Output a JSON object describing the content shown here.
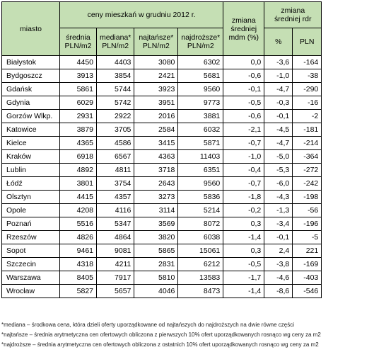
{
  "headers": {
    "city": "miasto",
    "prices_group": "ceny mieszkań w grudniu 2012 r.",
    "avg": "średnia PLN/m2",
    "median": "mediana* PLN/m2",
    "lowest": "najtańsze* PLN/m2",
    "highest": "najdroższe* PLN/m2",
    "change_avg": "zmiana średniej mdm (%)",
    "change_yoy": "zmiana średniej rdr",
    "pct": "%",
    "pln": "PLN"
  },
  "rows": [
    {
      "city": "Białystok",
      "avg": "4450",
      "median": "4403",
      "low": "3080",
      "high": "6302",
      "mdm": "0,0",
      "pct": "-3,6",
      "pln": "-164"
    },
    {
      "city": "Bydgoszcz",
      "avg": "3913",
      "median": "3854",
      "low": "2421",
      "high": "5681",
      "mdm": "-0,6",
      "pct": "-1,0",
      "pln": "-38"
    },
    {
      "city": "Gdańsk",
      "avg": "5861",
      "median": "5744",
      "low": "3923",
      "high": "9560",
      "mdm": "-0,1",
      "pct": "-4,7",
      "pln": "-290"
    },
    {
      "city": "Gdynia",
      "avg": "6029",
      "median": "5742",
      "low": "3951",
      "high": "9773",
      "mdm": "-0,5",
      "pct": "-0,3",
      "pln": "-16"
    },
    {
      "city": "Gorzów Wlkp.",
      "avg": "2931",
      "median": "2922",
      "low": "2016",
      "high": "3881",
      "mdm": "-0,6",
      "pct": "-0,1",
      "pln": "-2"
    },
    {
      "city": "Katowice",
      "avg": "3879",
      "median": "3705",
      "low": "2584",
      "high": "6032",
      "mdm": "-2,1",
      "pct": "-4,5",
      "pln": "-181"
    },
    {
      "city": "Kielce",
      "avg": "4365",
      "median": "4586",
      "low": "3415",
      "high": "5871",
      "mdm": "-0,7",
      "pct": "-4,7",
      "pln": "-214"
    },
    {
      "city": "Kraków",
      "avg": "6918",
      "median": "6567",
      "low": "4363",
      "high": "11403",
      "mdm": "-1,0",
      "pct": "-5,0",
      "pln": "-364"
    },
    {
      "city": "Lublin",
      "avg": "4892",
      "median": "4811",
      "low": "3718",
      "high": "6351",
      "mdm": "-0,4",
      "pct": "-5,3",
      "pln": "-272"
    },
    {
      "city": "Łódź",
      "avg": "3801",
      "median": "3754",
      "low": "2643",
      "high": "9560",
      "mdm": "-0,7",
      "pct": "-6,0",
      "pln": "-242"
    },
    {
      "city": "Olsztyn",
      "avg": "4415",
      "median": "4357",
      "low": "3273",
      "high": "5836",
      "mdm": "-1,8",
      "pct": "-4,3",
      "pln": "-198"
    },
    {
      "city": "Opole",
      "avg": "4208",
      "median": "4116",
      "low": "3114",
      "high": "5214",
      "mdm": "-0,2",
      "pct": "-1,3",
      "pln": "-56"
    },
    {
      "city": "Poznań",
      "avg": "5516",
      "median": "5347",
      "low": "3569",
      "high": "8072",
      "mdm": "0,3",
      "pct": "-3,4",
      "pln": "-196"
    },
    {
      "city": "Rzeszów",
      "avg": "4826",
      "median": "4864",
      "low": "3820",
      "high": "6038",
      "mdm": "-1,4",
      "pct": "-0,1",
      "pln": "-5"
    },
    {
      "city": "Sopot",
      "avg": "9461",
      "median": "9081",
      "low": "5865",
      "high": "15061",
      "mdm": "0,3",
      "pct": "2,4",
      "pln": "221"
    },
    {
      "city": "Szczecin",
      "avg": "4318",
      "median": "4211",
      "low": "2831",
      "high": "6212",
      "mdm": "-0,5",
      "pct": "-3,8",
      "pln": "-169"
    },
    {
      "city": "Warszawa",
      "avg": "8405",
      "median": "7917",
      "low": "5810",
      "high": "13583",
      "mdm": "-1,7",
      "pct": "-4,6",
      "pln": "-403"
    },
    {
      "city": "Wrocław",
      "avg": "5827",
      "median": "5657",
      "low": "4046",
      "high": "8473",
      "mdm": "-1,4",
      "pct": "-8,6",
      "pln": "-546"
    }
  ],
  "footnotes": [
    "*mediana – środkowa cena, która dzieli oferty uporządkowane od najtańszych do najdroższych na dwie równe części",
    "*najtańsze – średnia arytmetyczna cen ofertowych obliczona z pierwszych 10% ofert uporządkowanych rosnąco wg ceny za m2",
    "*najdroższe – średnia arytmetyczna cen ofertowych obliczona z ostatnich 10% ofert uporządkowanych rosnąco wg ceny za m2"
  ]
}
